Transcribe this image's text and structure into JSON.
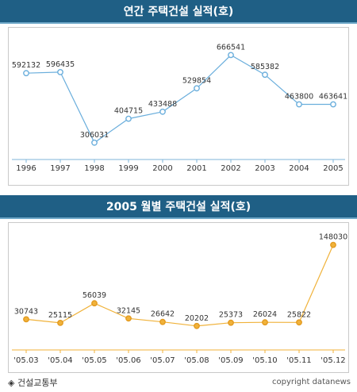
{
  "charts": [
    {
      "title": "연간 주택건설 실적(호)",
      "type": "line",
      "categories": [
        "1996",
        "1997",
        "1998",
        "1999",
        "2000",
        "2001",
        "2002",
        "2003",
        "2004",
        "2005"
      ],
      "values": [
        592132,
        596435,
        306031,
        404715,
        433488,
        529854,
        666541,
        585382,
        463800,
        463641
      ],
      "value_labels": [
        "592132",
        "596435",
        "306031",
        "404715",
        "433488",
        "529854",
        "666541",
        "585382",
        "463800",
        "463641"
      ],
      "ylim": [
        250000,
        720000
      ],
      "line_color": "#6aaedc",
      "marker_color": "#6aaedc",
      "x_axis_color": "#7fb4d8"
    },
    {
      "title": "2005 월별 주택건설 실적(호)",
      "type": "line",
      "categories": [
        "'05.03",
        "'05.04",
        "'05.05",
        "'05.06",
        "'05.07",
        "'05.08",
        "'05.09",
        "'05.10",
        "'05.11",
        "'05.12"
      ],
      "values": [
        30743,
        25115,
        56039,
        32145,
        26642,
        20202,
        25373,
        26024,
        25822,
        148030
      ],
      "value_labels": [
        "30743",
        "25115",
        "56039",
        "32145",
        "26642",
        "20202",
        "25373",
        "26024",
        "25822",
        "148030"
      ],
      "ylim": [
        -20000,
        160000
      ],
      "line_color": "#f0b23a",
      "marker_color": "#f0b23a",
      "x_axis_color": "#f0b23a"
    }
  ],
  "footer": {
    "source": "◈ 건설교통부",
    "copyright": "copyright datanews"
  }
}
